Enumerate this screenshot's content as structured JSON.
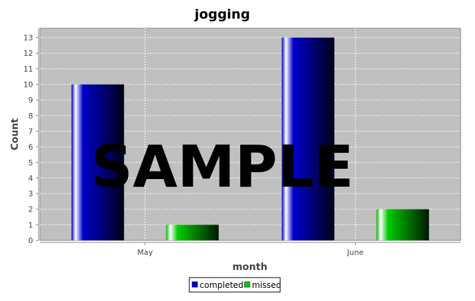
{
  "chart_data": {
    "type": "bar",
    "title": "jogging",
    "xlabel": "month",
    "ylabel": "Count",
    "categories": [
      "May",
      "June"
    ],
    "series": [
      {
        "name": "completed",
        "values": [
          10,
          13
        ],
        "color": "#0000cc"
      },
      {
        "name": "missed",
        "values": [
          1,
          2
        ],
        "color": "#00cc00"
      }
    ],
    "ylim": [
      0,
      13.6
    ],
    "yticks": [
      0,
      1,
      2,
      3,
      4,
      5,
      6,
      7,
      8,
      9,
      10,
      11,
      12,
      13
    ],
    "grid": true,
    "legend_position": "bottom-center",
    "plot_background": "#c0c0c0",
    "watermark": "SAMPLE"
  }
}
